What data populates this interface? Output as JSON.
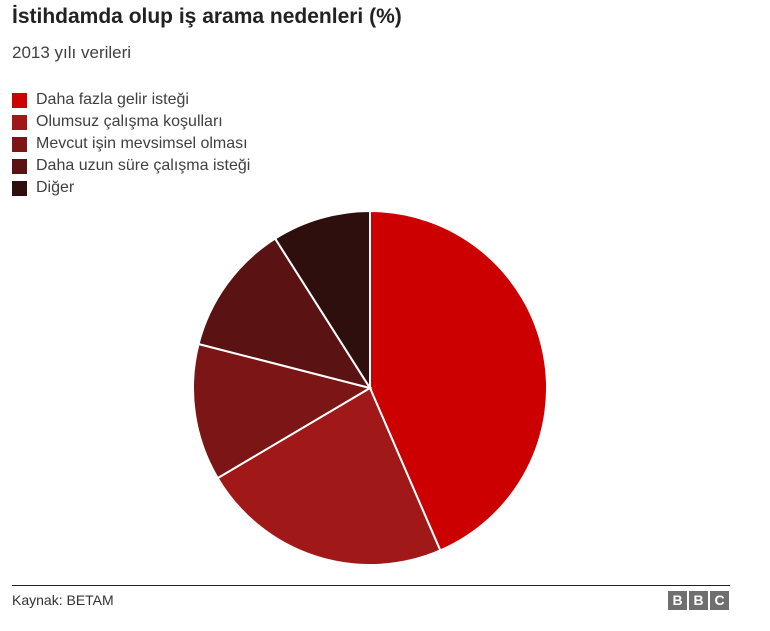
{
  "title": "İstihdamda olup iş arama nedenleri (%)",
  "subtitle": "2013 yılı verileri",
  "source": "Kaynak: BETAM",
  "logo": [
    "B",
    "B",
    "C"
  ],
  "chart_data": {
    "type": "pie",
    "title": "İstihdamda olup iş arama nedenleri (%)",
    "subtitle": "2013 yılı verileri",
    "legend_position": "top-left",
    "start_angle_deg": 0,
    "direction": "clockwise",
    "slices": [
      {
        "label": "Daha fazla gelir isteği",
        "value": 43.5,
        "color": "#cc0000"
      },
      {
        "label": "Olumsuz çalışma koşulları",
        "value": 23.0,
        "color": "#a01818"
      },
      {
        "label": "Mevcut işin mevsimsel olması",
        "value": 12.5,
        "color": "#7c1616"
      },
      {
        "label": "Daha uzun süre çalışma isteği",
        "value": 12.0,
        "color": "#5a1212"
      },
      {
        "label": "Diğer",
        "value": 9.0,
        "color": "#2f0e0e"
      }
    ]
  }
}
